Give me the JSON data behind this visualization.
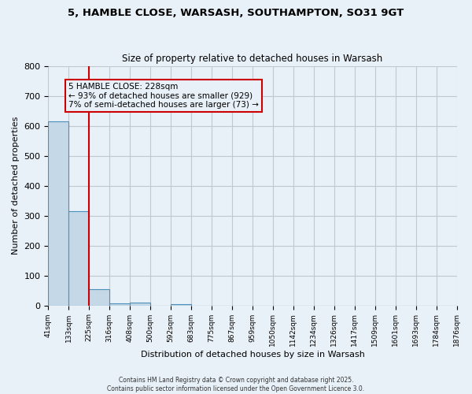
{
  "title": "5, HAMBLE CLOSE, WARSASH, SOUTHAMPTON, SO31 9GT",
  "subtitle": "Size of property relative to detached houses in Warsash",
  "xlabel": "Distribution of detached houses by size in Warsash",
  "ylabel": "Number of detached properties",
  "bin_edges": [
    "41sqm",
    "133sqm",
    "225sqm",
    "316sqm",
    "408sqm",
    "500sqm",
    "592sqm",
    "683sqm",
    "775sqm",
    "867sqm",
    "959sqm",
    "1050sqm",
    "1142sqm",
    "1234sqm",
    "1326sqm",
    "1417sqm",
    "1509sqm",
    "1601sqm",
    "1693sqm",
    "1784sqm",
    "1876sqm"
  ],
  "bar_values": [
    615,
    315,
    55,
    8,
    10,
    0,
    3,
    0,
    0,
    0,
    0,
    0,
    0,
    0,
    0,
    0,
    0,
    0,
    0,
    0
  ],
  "bar_color": "#c5d8e8",
  "bar_edge_color": "#4a90b8",
  "vline_x": 2,
  "vline_color": "#cc0000",
  "annotation_text": "5 HAMBLE CLOSE: 228sqm\n← 93% of detached houses are smaller (929)\n7% of semi-detached houses are larger (73) →",
  "annotation_box_color": "#cc0000",
  "ylim": [
    0,
    800
  ],
  "yticks": [
    0,
    100,
    200,
    300,
    400,
    500,
    600,
    700,
    800
  ],
  "grid_color": "#c0c8d0",
  "background_color": "#e8f0f8",
  "footer_line1": "Contains HM Land Registry data © Crown copyright and database right 2025.",
  "footer_line2": "Contains public sector information licensed under the Open Government Licence 3.0.",
  "figsize": [
    6.0,
    5.0
  ],
  "dpi": 100
}
